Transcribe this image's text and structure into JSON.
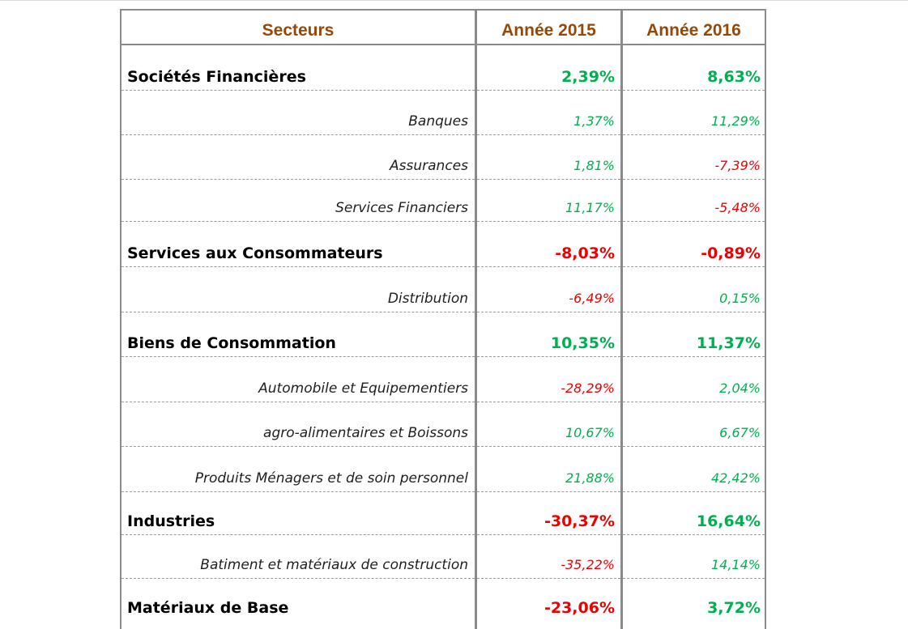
{
  "colors": {
    "header": "#984806",
    "positive": "#00b050",
    "negative": "#ee0000"
  },
  "header": {
    "sector": "Secteurs",
    "year1": "Année 2015",
    "year2": "Année 2016"
  },
  "rows": [
    {
      "name": "Sociétés Financières",
      "v2015": "2,39%",
      "v2016": "8,63%",
      "level": "main"
    },
    {
      "name": "Banques",
      "v2015": "1,37%",
      "v2016": "11,29%",
      "level": "sub"
    },
    {
      "name": "Assurances",
      "v2015": "1,81%",
      "v2016": "-7,39%",
      "level": "sub"
    },
    {
      "name": "Services Financiers",
      "v2015": "11,17%",
      "v2016": "-5,48%",
      "level": "sub"
    },
    {
      "name": "Services aux Consommateurs",
      "v2015": "-8,03%",
      "v2016": "-0,89%",
      "level": "main"
    },
    {
      "name": "Distribution",
      "v2015": "-6,49%",
      "v2016": "0,15%",
      "level": "sub"
    },
    {
      "name": "Biens de Consommation",
      "v2015": "10,35%",
      "v2016": "11,37%",
      "level": "main"
    },
    {
      "name": "Automobile et Equipementiers",
      "v2015": "-28,29%",
      "v2016": "2,04%",
      "level": "sub"
    },
    {
      "name": "agro-alimentaires et Boissons",
      "v2015": "10,67%",
      "v2016": "6,67%",
      "level": "sub"
    },
    {
      "name": "Produits Ménagers et de soin personnel",
      "v2015": "21,88%",
      "v2016": "42,42%",
      "level": "sub"
    },
    {
      "name": "Industries",
      "v2015": "-30,37%",
      "v2016": "16,64%",
      "level": "main"
    },
    {
      "name": "Batiment et matériaux de construction",
      "v2015": "-35,22%",
      "v2016": "14,14%",
      "level": "sub"
    },
    {
      "name": "Matériaux de Base",
      "v2015": "-23,06%",
      "v2016": "3,72%",
      "level": "main"
    }
  ]
}
